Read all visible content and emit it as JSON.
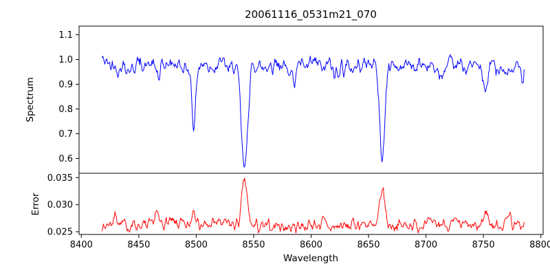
{
  "figure": {
    "title": "20061116_0531m21_070",
    "xlabel": "Wavelength",
    "background": "#ffffff"
  },
  "x_axis": {
    "label": "Wavelength",
    "ticks": [
      8400,
      8450,
      8500,
      8550,
      8600,
      8650,
      8700,
      8750,
      8800
    ],
    "tick_labels": [
      "8400",
      "8450",
      "8500",
      "8550",
      "8600",
      "8650",
      "8700",
      "8750",
      "8800"
    ]
  },
  "chart_data": [
    {
      "type": "line",
      "panel": "top",
      "name": "spectrum",
      "ylabel": "Spectrum",
      "color": "#0000ff",
      "xlim": [
        8398,
        8802
      ],
      "ylim": [
        0.54,
        1.135
      ],
      "x_range_data": [
        8418,
        8786
      ],
      "n_points": 620,
      "baseline": 0.975,
      "noise": {
        "fast": 0.09,
        "slow": 0.12
      },
      "y_ticks": [
        0.6,
        0.7,
        0.8,
        0.9,
        1.0,
        1.1
      ],
      "y_tick_labels": [
        "0.6",
        "0.7",
        "0.8",
        "0.9",
        "1.0",
        "1.1"
      ],
      "features": [
        {
          "center": 8498,
          "depth": 0.25,
          "sigma": 1.6
        },
        {
          "center": 8542,
          "depth": 0.425,
          "sigma": 2.6
        },
        {
          "center": 8662,
          "depth": 0.37,
          "sigma": 2.2
        },
        {
          "center": 8468,
          "depth": 0.06,
          "sigma": 1.2
        },
        {
          "center": 8585,
          "depth": 0.07,
          "sigma": 1.4
        },
        {
          "center": 8620,
          "depth": 0.05,
          "sigma": 1.2
        },
        {
          "center": 8713,
          "depth": 0.05,
          "sigma": 1.4
        },
        {
          "center": 8752,
          "depth": 0.11,
          "sigma": 1.8
        },
        {
          "center": 8784,
          "depth": 0.09,
          "sigma": 1.2
        }
      ]
    },
    {
      "type": "line",
      "panel": "bottom",
      "name": "error",
      "ylabel": "Error",
      "color": "#ff0000",
      "xlim": [
        8398,
        8802
      ],
      "ylim": [
        0.0245,
        0.0358
      ],
      "x_range_data": [
        8418,
        8786
      ],
      "n_points": 620,
      "baseline": 0.0262,
      "noise": {
        "fast": 0.0035,
        "slow": 0.003
      },
      "y_ticks": [
        0.025,
        0.03,
        0.035
      ],
      "y_tick_labels": [
        "0.025",
        "0.030",
        "0.035"
      ],
      "features": [
        {
          "center": 8430,
          "height": 0.0018,
          "sigma": 1.5
        },
        {
          "center": 8465,
          "height": 0.0028,
          "sigma": 1.5
        },
        {
          "center": 8498,
          "height": 0.0032,
          "sigma": 1.8
        },
        {
          "center": 8542,
          "height": 0.0082,
          "sigma": 2.2
        },
        {
          "center": 8662,
          "height": 0.0072,
          "sigma": 2.2
        },
        {
          "center": 8610,
          "height": 0.0008,
          "sigma": 2.0
        },
        {
          "center": 8700,
          "height": 0.0008,
          "sigma": 2.0
        },
        {
          "center": 8752,
          "height": 0.0022,
          "sigma": 2.0
        },
        {
          "center": 8772,
          "height": 0.0024,
          "sigma": 1.5
        }
      ]
    }
  ]
}
